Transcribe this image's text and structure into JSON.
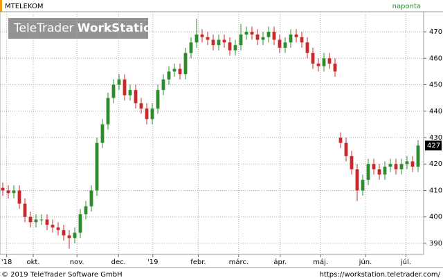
{
  "chart_data": {
    "type": "candlestick",
    "title": "MTELEKOM",
    "interval": "naponta",
    "watermark": {
      "brand": "TeleTrader",
      "product": "WorkStation"
    },
    "footer_left": "© 2019 TeleTrader Software GmbH",
    "footer_right": "https://workstation.teletrader.com/",
    "last_value": 427,
    "up_color": "#2e8b2e",
    "down_color": "#c8282a",
    "grid": true,
    "xlim": [
      0,
      76.5
    ],
    "xticks": [
      {
        "value": 1.2,
        "label": "'18"
      },
      {
        "value": 6,
        "label": "okt."
      },
      {
        "value": 13.9,
        "label": "nov."
      },
      {
        "value": 21.4,
        "label": "dec."
      },
      {
        "value": 27.6,
        "label": "'19"
      },
      {
        "value": 35.8,
        "label": "febr."
      },
      {
        "value": 43.1,
        "label": "márc."
      },
      {
        "value": 50.6,
        "label": "ápr."
      },
      {
        "value": 57.9,
        "label": "máj."
      },
      {
        "value": 66,
        "label": "jún."
      },
      {
        "value": 73.3,
        "label": "júl."
      }
    ],
    "ylim": [
      385.8,
      477.6
    ],
    "yticks": [
      390,
      400,
      410,
      420,
      430,
      440,
      450,
      460,
      470
    ],
    "open": [
      411,
      410,
      409,
      410,
      405,
      400,
      398,
      399,
      399,
      397,
      396,
      395,
      393,
      392,
      394,
      401,
      404,
      410,
      428,
      435,
      445,
      450,
      452,
      446,
      448,
      443,
      441,
      437,
      441,
      448,
      452,
      455,
      456,
      454,
      462,
      466,
      469,
      468,
      467,
      465,
      467,
      466,
      463,
      465,
      469,
      470,
      469,
      467,
      468,
      470,
      467,
      464,
      466,
      469,
      468,
      466,
      462,
      458,
      457,
      460,
      458,
      430,
      428,
      423,
      418,
      410,
      414,
      420,
      418,
      416,
      419,
      420,
      418,
      420,
      421,
      419
    ],
    "high": [
      413,
      412,
      412,
      412,
      407,
      402,
      401,
      401,
      401,
      399,
      398,
      397,
      395,
      396,
      403,
      406,
      412,
      430,
      437,
      447,
      452,
      454,
      454,
      450,
      450,
      445,
      443,
      443,
      450,
      454,
      457,
      458,
      458,
      464,
      468,
      475,
      471,
      470,
      469,
      469,
      469,
      468,
      467,
      473,
      472,
      472,
      471,
      470,
      472,
      472,
      469,
      468,
      471,
      471,
      470,
      468,
      464,
      460,
      462,
      462,
      460,
      432,
      430,
      425,
      420,
      416,
      422,
      422,
      420,
      421,
      422,
      422,
      422,
      423,
      423,
      429
    ],
    "low": [
      408,
      407,
      407,
      403,
      398,
      396,
      396,
      397,
      395,
      394,
      393,
      391,
      388,
      390,
      392,
      399,
      402,
      408,
      426,
      433,
      443,
      448,
      444,
      444,
      441,
      439,
      435,
      435,
      439,
      446,
      450,
      453,
      452,
      452,
      460,
      464,
      466,
      465,
      463,
      463,
      464,
      461,
      461,
      463,
      467,
      467,
      465,
      465,
      466,
      465,
      462,
      462,
      464,
      466,
      464,
      460,
      456,
      455,
      455,
      456,
      453,
      426,
      421,
      416,
      406,
      408,
      412,
      416,
      414,
      414,
      417,
      416,
      416,
      418,
      417,
      417
    ],
    "close": [
      410,
      409,
      410,
      405,
      400,
      398,
      399,
      399,
      397,
      396,
      395,
      393,
      392,
      394,
      401,
      404,
      410,
      428,
      435,
      445,
      450,
      452,
      446,
      448,
      443,
      441,
      437,
      441,
      448,
      452,
      455,
      456,
      454,
      462,
      466,
      469,
      468,
      467,
      465,
      467,
      466,
      463,
      465,
      469,
      470,
      469,
      467,
      468,
      470,
      467,
      464,
      466,
      469,
      468,
      466,
      462,
      458,
      457,
      460,
      458,
      455,
      428,
      423,
      418,
      410,
      414,
      420,
      418,
      416,
      419,
      420,
      418,
      420,
      421,
      419,
      427
    ]
  }
}
